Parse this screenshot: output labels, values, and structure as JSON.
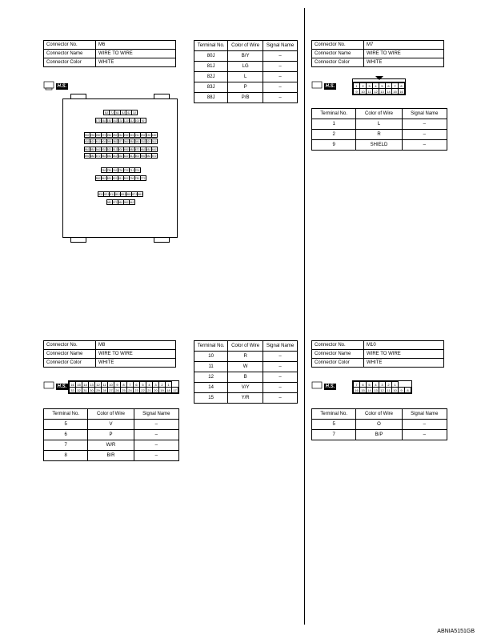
{
  "doc_id": "ABNIA5151GB",
  "labels": {
    "connector_no": "Connector No.",
    "connector_name": "Connector Name",
    "connector_color": "Connector Color",
    "terminal_no": "Terminal No.",
    "color_of_wire": "Color of\nWire",
    "signal_name": "Signal Name",
    "hs": "H.S."
  },
  "m6": {
    "no": "M6",
    "name": "WIRE TO WIRE",
    "color": "WHITE",
    "big_grids": [
      [
        "8J",
        "7J",
        "6J",
        "5J",
        "4J",
        "3J"
      ],
      [
        "17J",
        "16J",
        "15J",
        "14J",
        "13J",
        "12J",
        "11J",
        "10J",
        "9J"
      ],
      [
        "30J",
        "29J",
        "28J",
        "27J",
        "26J",
        "25J",
        "24J",
        "23J",
        "22J",
        "21J",
        "20J",
        "19J",
        "18J"
      ],
      [
        "43J",
        "42J",
        "41J",
        "40J",
        "39J",
        "38J",
        "37J",
        "36J",
        "35J",
        "34J",
        "33J",
        "32J",
        "31J"
      ],
      [
        "56J",
        "55J",
        "54J",
        "53J",
        "52J",
        "51J",
        "50J",
        "49J",
        "48J",
        "47J",
        "46J",
        "45J",
        "44J"
      ],
      [
        "69J",
        "68J",
        "67J",
        "66J",
        "65J",
        "64J",
        "63J",
        "62J",
        "61J",
        "60J",
        "59J",
        "58J",
        "57J"
      ],
      [
        "76J",
        "75J",
        "74J",
        "73J",
        "72J",
        "71J",
        "70J"
      ],
      [
        "85J",
        "84J",
        "83J",
        "82J",
        "81J",
        "80J",
        "79J",
        "78J",
        "77J"
      ],
      [
        "93J",
        "92J",
        "91J",
        "90J",
        "89J",
        "88J",
        "87J",
        "86J"
      ],
      [
        "98J",
        "97J",
        "96J",
        "95J",
        "94J"
      ]
    ]
  },
  "m6_pins_a": {
    "rows": [
      {
        "t": "80J",
        "c": "B/Y",
        "s": "–"
      },
      {
        "t": "81J",
        "c": "LG",
        "s": "–"
      },
      {
        "t": "82J",
        "c": "L",
        "s": "–"
      },
      {
        "t": "83J",
        "c": "P",
        "s": "–"
      },
      {
        "t": "88J",
        "c": "P/B",
        "s": "–"
      }
    ]
  },
  "m7": {
    "no": "M7",
    "name": "WIRE TO WIRE",
    "color": "WHITE",
    "pin_grid": [
      [
        "1",
        "2",
        "3",
        "4",
        "5",
        "6",
        "7",
        "8"
      ],
      [
        "9",
        "10",
        "11",
        "12",
        "13",
        "14",
        "15",
        "16"
      ]
    ],
    "rows": [
      {
        "t": "1",
        "c": "L",
        "s": "–"
      },
      {
        "t": "2",
        "c": "R",
        "s": "–"
      },
      {
        "t": "9",
        "c": "SHIELD",
        "s": "–"
      }
    ]
  },
  "m8": {
    "no": "M8",
    "name": "WIRE TO WIRE",
    "color": "WHITE",
    "pin_grid": [
      [
        "16",
        "15",
        "14",
        "13",
        "12",
        "11",
        "10",
        "9",
        "8",
        "7",
        "6",
        "5",
        "4",
        "3",
        "2",
        "1"
      ],
      [
        "33",
        "32",
        "31",
        "30",
        "29",
        "28",
        "27",
        "26",
        "25",
        "24",
        "23",
        "22",
        "21",
        "20",
        "19",
        "18",
        "17"
      ]
    ],
    "rows": [
      {
        "t": "5",
        "c": "V",
        "s": "–"
      },
      {
        "t": "6",
        "c": "P",
        "s": "–"
      },
      {
        "t": "7",
        "c": "W/R",
        "s": "–"
      },
      {
        "t": "8",
        "c": "B/R",
        "s": "–"
      }
    ]
  },
  "m8_pins_b": {
    "rows": [
      {
        "t": "10",
        "c": "R",
        "s": "–"
      },
      {
        "t": "11",
        "c": "W",
        "s": "–"
      },
      {
        "t": "12",
        "c": "B",
        "s": "–"
      },
      {
        "t": "14",
        "c": "V/Y",
        "s": "–"
      },
      {
        "t": "15",
        "c": "Y/R",
        "s": "–"
      }
    ]
  },
  "m10": {
    "no": "M10",
    "name": "WIRE TO WIRE",
    "color": "WHITE",
    "pin_grid": [
      [
        "7",
        "6",
        "5",
        "4",
        "3",
        "2",
        "1"
      ],
      [
        "16",
        "15",
        "14",
        "13",
        "12",
        "11",
        "10",
        "9",
        "8"
      ]
    ],
    "rows": [
      {
        "t": "5",
        "c": "O",
        "s": "–"
      },
      {
        "t": "7",
        "c": "B/P",
        "s": "–"
      }
    ]
  }
}
